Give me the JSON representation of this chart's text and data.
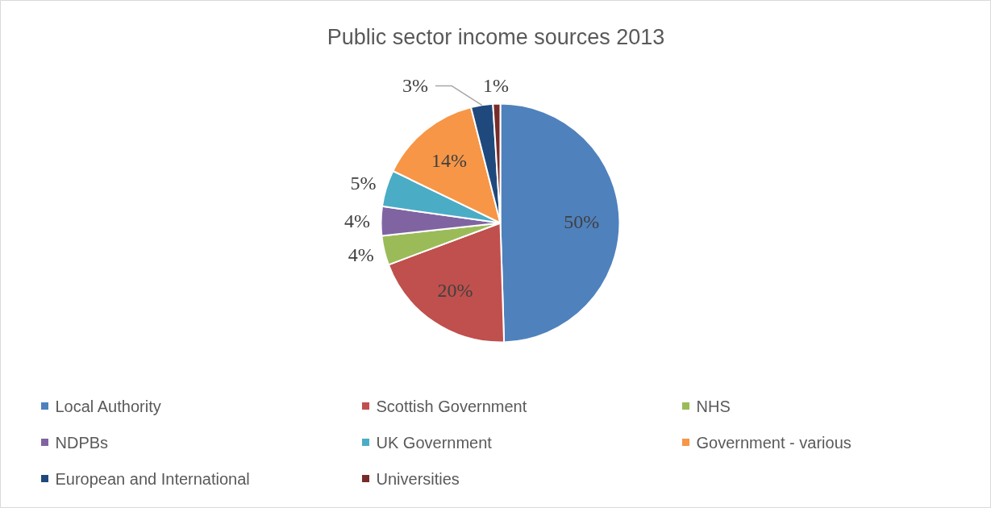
{
  "chart_data": {
    "type": "pie",
    "title": "Public sector income sources 2013",
    "categories": [
      "Local Authority",
      "Scottish Government",
      "NHS",
      "NDPBs",
      "UK Government",
      "Government - various",
      "European and International",
      "Universities"
    ],
    "values": [
      50,
      20,
      4,
      4,
      5,
      14,
      3,
      1
    ],
    "colors": [
      "#4f81bd",
      "#c0504d",
      "#9bbb59",
      "#8064a2",
      "#4bacc6",
      "#f79646",
      "#1f497d",
      "#772c2a"
    ],
    "value_labels": [
      "50%",
      "20%",
      "4%",
      "4%",
      "5%",
      "14%",
      "3%",
      "1%"
    ],
    "legend": "bottom"
  }
}
